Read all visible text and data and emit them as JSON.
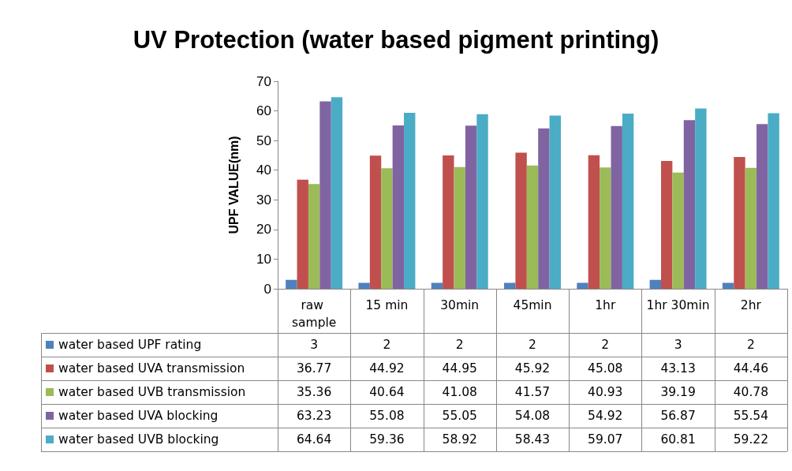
{
  "chart_data": {
    "type": "bar",
    "title": "UV Protection (water based pigment printing)",
    "ylabel": "UPF VALUE(nm)",
    "categories": [
      "raw sample",
      "15 min",
      "30min",
      "45min",
      "1hr",
      "1hr 30min",
      "2hr"
    ],
    "series": [
      {
        "name": "water based UPF rating",
        "color": "#4f81bd",
        "values": [
          3,
          2,
          2,
          2,
          2,
          3,
          2
        ]
      },
      {
        "name": "water based UVA transmission",
        "color": "#c0504d",
        "values": [
          36.77,
          44.92,
          44.95,
          45.92,
          45.08,
          43.13,
          44.46
        ]
      },
      {
        "name": "water based UVB transmission",
        "color": "#9bbb59",
        "values": [
          35.36,
          40.64,
          41.08,
          41.57,
          40.93,
          39.19,
          40.78
        ]
      },
      {
        "name": "water based UVA blocking",
        "color": "#8064a2",
        "values": [
          63.23,
          55.08,
          55.05,
          54.08,
          54.92,
          56.87,
          55.54
        ]
      },
      {
        "name": "water based UVB blocking",
        "color": "#4bacc6",
        "values": [
          64.64,
          59.36,
          58.92,
          58.43,
          59.07,
          60.81,
          59.22
        ]
      }
    ],
    "ylim": [
      0,
      70
    ],
    "yticks": [
      0,
      10,
      20,
      30,
      40,
      50,
      60,
      70
    ],
    "grid": false,
    "legend": "bottom",
    "data_labels": true
  }
}
